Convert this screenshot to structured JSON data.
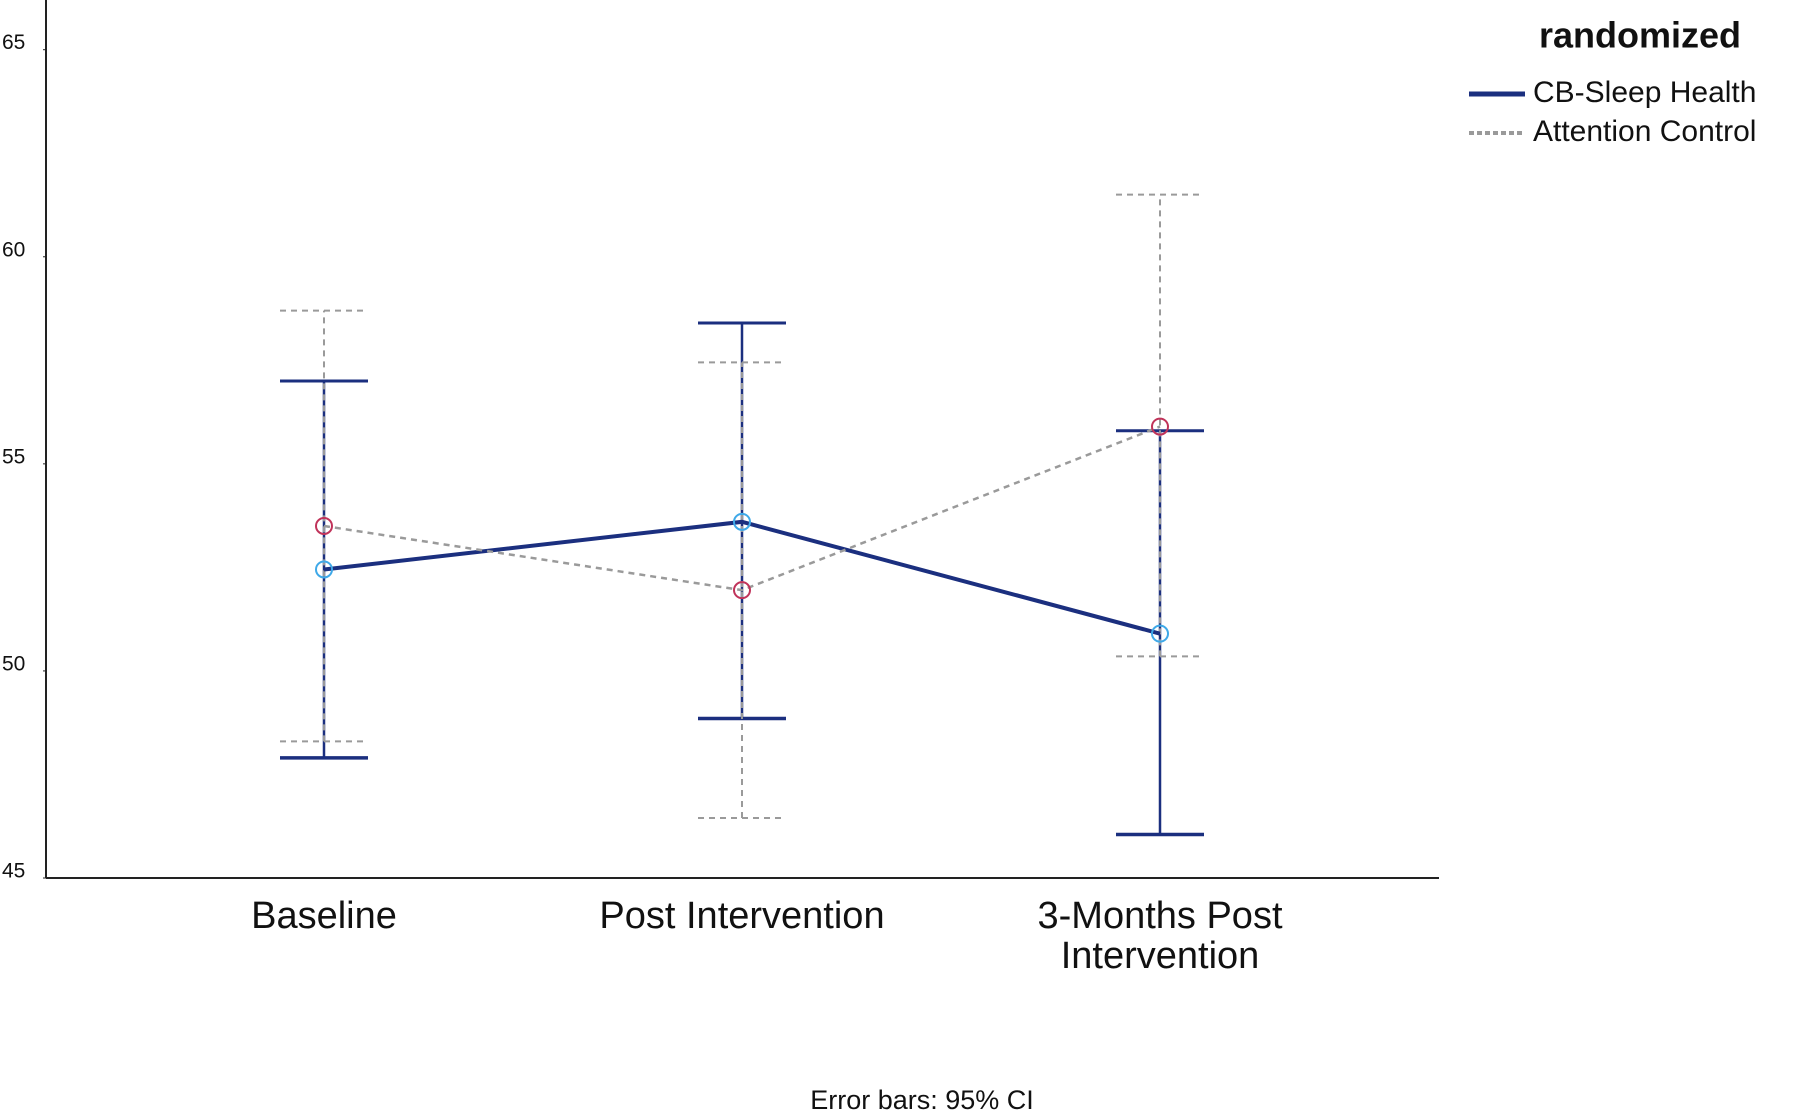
{
  "chart_data": {
    "type": "line",
    "categories": [
      "Baseline",
      "Post Intervention",
      "3-Months Post Intervention"
    ],
    "series": [
      {
        "name": "CB-Sleep Health",
        "color": "#1b2f7f",
        "marker_color": "#3fa9e8",
        "dashed": false,
        "values": [
          52.45,
          53.6,
          50.9
        ],
        "ci_lower": [
          47.9,
          48.85,
          46.05
        ],
        "ci_upper": [
          57.0,
          58.4,
          55.8
        ]
      },
      {
        "name": "Attention Control",
        "color": "#9a9a9a",
        "marker_color": "#c0335a",
        "dashed": true,
        "values": [
          53.5,
          51.95,
          55.9
        ],
        "ci_lower": [
          48.3,
          46.45,
          50.35
        ],
        "ci_upper": [
          58.7,
          57.45,
          61.5
        ]
      }
    ],
    "legend_title": "randomized",
    "legend_position": "upper right",
    "footnote": "Error bars: 95% CI",
    "ylim": [
      45,
      66.2
    ],
    "yticks": [
      45,
      50,
      55,
      60,
      65
    ]
  }
}
